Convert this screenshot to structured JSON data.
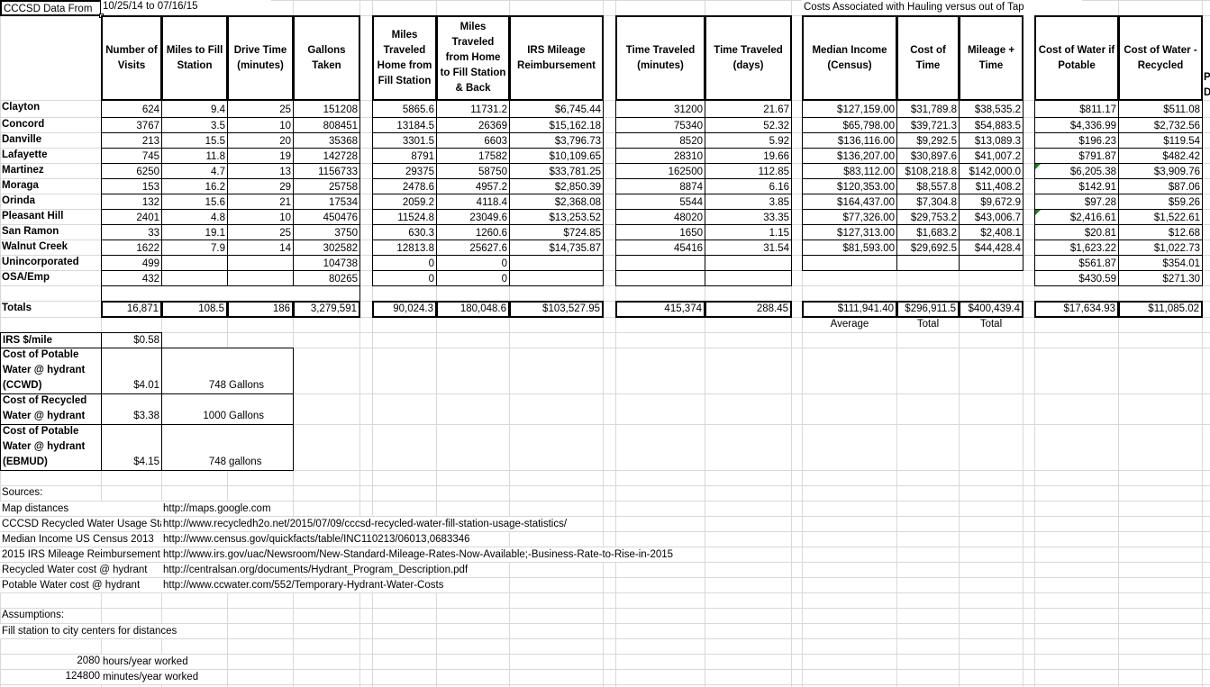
{
  "sheet": {
    "data_from_label": "CCCSD Data From",
    "date_range": "10/25/14 to 07/16/15",
    "costs_title": "Costs Associated with Hauling versus out of Tap",
    "cutoff_header": [
      "P",
      "D"
    ]
  },
  "headers": [
    "Number of Visits",
    "Miles to Fill Station",
    "Drive Time (minutes)",
    "Gallons Taken",
    "Miles Traveled Home from Fill Station",
    "Miles Traveled from Home to Fill Station & Back",
    "IRS Mileage Reimbursement",
    "Time Traveled (minutes)",
    "Time Traveled (days)",
    "Median Income (Census)",
    "Cost of Time",
    "Mileage + Time",
    "Cost of Water if Potable",
    "Cost of Water - Recycled"
  ],
  "rows": [
    {
      "city": "Clayton",
      "values": [
        "624",
        "9.4",
        "25",
        "151208",
        "5865.6",
        "11731.2",
        "$6,745.44",
        "31200",
        "21.67",
        "$127,159.00",
        "$31,789.8",
        "$38,535.2",
        "$811.17",
        "$511.08"
      ]
    },
    {
      "city": "Concord",
      "values": [
        "3767",
        "3.5",
        "10",
        "808451",
        "13184.5",
        "26369",
        "$15,162.18",
        "75340",
        "52.32",
        "$65,798.00",
        "$39,721.3",
        "$54,883.5",
        "$4,336.99",
        "$2,732.56"
      ]
    },
    {
      "city": "Danville",
      "values": [
        "213",
        "15.5",
        "20",
        "35368",
        "3301.5",
        "6603",
        "$3,796.73",
        "8520",
        "5.92",
        "$136,116.00",
        "$9,292.5",
        "$13,089.3",
        "$196.23",
        "$119.54"
      ]
    },
    {
      "city": "Lafayette",
      "values": [
        "745",
        "11.8",
        "19",
        "142728",
        "8791",
        "17582",
        "$10,109.65",
        "28310",
        "19.66",
        "$136,207.00",
        "$30,897.6",
        "$41,007.2",
        "$791.87",
        "$482.42"
      ]
    },
    {
      "city": "Martinez",
      "values": [
        "6250",
        "4.7",
        "13",
        "1156733",
        "29375",
        "58750",
        "$33,781.25",
        "162500",
        "112.85",
        "$83,112.00",
        "$108,218.8",
        "$142,000.0",
        "$6,205.38",
        "$3,909.76"
      ]
    },
    {
      "city": "Moraga",
      "values": [
        "153",
        "16.2",
        "29",
        "25758",
        "2478.6",
        "4957.2",
        "$2,850.39",
        "8874",
        "6.16",
        "$120,353.00",
        "$8,557.8",
        "$11,408.2",
        "$142.91",
        "$87.06"
      ]
    },
    {
      "city": "Orinda",
      "values": [
        "132",
        "15.6",
        "21",
        "17534",
        "2059.2",
        "4118.4",
        "$2,368.08",
        "5544",
        "3.85",
        "$164,437.00",
        "$7,304.8",
        "$9,672.9",
        "$97.28",
        "$59.26"
      ]
    },
    {
      "city": "Pleasant Hill",
      "values": [
        "2401",
        "4.8",
        "10",
        "450476",
        "11524.8",
        "23049.6",
        "$13,253.52",
        "48020",
        "33.35",
        "$77,326.00",
        "$29,753.2",
        "$43,006.7",
        "$2,416.61",
        "$1,522.61"
      ]
    },
    {
      "city": "San Ramon",
      "values": [
        "33",
        "19.1",
        "25",
        "3750",
        "630.3",
        "1260.6",
        "$724.85",
        "1650",
        "1.15",
        "$127,313.00",
        "$1,683.2",
        "$2,408.1",
        "$20.81",
        "$12.68"
      ]
    },
    {
      "city": "Walnut Creek",
      "values": [
        "1622",
        "7.9",
        "14",
        "302582",
        "12813.8",
        "25627.6",
        "$14,735.87",
        "45416",
        "31.54",
        "$81,593.00",
        "$29,692.5",
        "$44,428.4",
        "$1,623.22",
        "$1,022.73"
      ]
    },
    {
      "city": "Unincorporated",
      "values": [
        "499",
        "",
        "",
        "104738",
        "0",
        "0",
        "",
        "",
        "",
        "",
        "",
        "",
        "$561.87",
        "$354.01"
      ]
    },
    {
      "city": "OSA/Emp",
      "values": [
        "432",
        "",
        "",
        "80265",
        "0",
        "0",
        "",
        "",
        "",
        "",
        "",
        "",
        "$430.59",
        "$271.30"
      ]
    }
  ],
  "totals": {
    "label": "Totals",
    "values": [
      "16,871",
      "108.5",
      "186",
      "3,279,591",
      "90,024.3",
      "180,048.6",
      "$103,527.95",
      "415,374",
      "288.45",
      "$111,941.40",
      "$296,911.5",
      "$400,439.4",
      "$17,634.93",
      "$11,085.02"
    ],
    "notes": {
      "income": "Average",
      "cost_of_time": "Total",
      "mileage_time": "Total"
    }
  },
  "constants": {
    "irs": {
      "label": "IRS $/mile",
      "value": "$0.58"
    },
    "potable_ccwd": {
      "label": "Cost of Potable Water @ hydrant (CCWD)",
      "value": "$4.01",
      "qty": "748",
      "unit": "Gallons"
    },
    "recycled": {
      "label": "Cost of Recycled Water @ hydrant",
      "value": "$3.38",
      "qty": "1000",
      "unit": "Gallons"
    },
    "potable_ebmud": {
      "label": "Cost of Potable Water @ hydrant (EBMUD)",
      "value": "$4.15",
      "qty": "748",
      "unit": "gallons"
    }
  },
  "sources": {
    "title": "Sources:",
    "items": [
      {
        "label": "Map distances",
        "url": "http://maps.google.com"
      },
      {
        "label": "CCCSD Recycled Water Usage Statistics",
        "url": "http://www.recycledh2o.net/2015/07/09/cccsd-recycled-water-fill-station-usage-statistics/"
      },
      {
        "label": "Median Income US Census 2013",
        "url": "http://www.census.gov/quickfacts/table/INC110213/06013,0683346"
      },
      {
        "label": "2015 IRS Mileage Reimbursement",
        "url": "http://www.irs.gov/uac/Newsroom/New-Standard-Mileage-Rates-Now-Available;-Business-Rate-to-Rise-in-2015"
      },
      {
        "label": "Recycled Water cost @ hydrant",
        "url": "http://centralsan.org/documents/Hydrant_Program_Description.pdf"
      },
      {
        "label": "Potable Water cost @ hydrant",
        "url": "http://www.ccwater.com/552/Temporary-Hydrant-Water-Costs"
      }
    ]
  },
  "assumptions": {
    "title": "Assumptions:",
    "note": "Fill station to city centers for distances",
    "hours": {
      "value": "2080",
      "label": "hours/year worked"
    },
    "minutes": {
      "value": "124800",
      "label": "minutes/year worked"
    }
  },
  "colors": {
    "gridline": "#d9d9d9",
    "error_indicator": "#1e7b1e"
  }
}
